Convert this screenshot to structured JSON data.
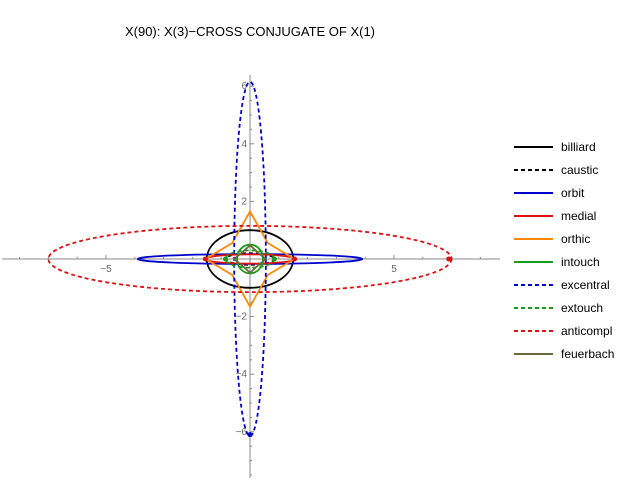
{
  "chart_data": {
    "type": "line",
    "title": "X(90): X(3)−CROSS CONJUGATE OF X(1)",
    "xlabel": "",
    "ylabel": "",
    "xlim": [
      -8.6,
      8.6
    ],
    "ylim": [
      -7.6,
      6.2
    ],
    "x_ticks": [
      -5,
      5
    ],
    "x_tick_labels": [
      "−5",
      "5"
    ],
    "y_ticks": [
      -6,
      -4,
      -2,
      2,
      4,
      6
    ],
    "y_tick_labels": [
      "−6",
      "−4",
      "−2",
      "2",
      "4",
      "6"
    ],
    "grid": false,
    "legend_position": "right",
    "series": [
      {
        "name": "billiard",
        "color": "#000000",
        "dashed": false,
        "kind": "ellipse",
        "cx": 0,
        "cy": 0,
        "rx": 1.5,
        "ry": 1.0
      },
      {
        "name": "caustic",
        "color": "#000000",
        "dashed": true,
        "kind": "ellipse",
        "cx": 0,
        "cy": 0,
        "rx": 0.85,
        "ry": 0.2
      },
      {
        "name": "orbit",
        "color": "#0000cc",
        "dashed": false,
        "kind": "ellipse",
        "cx": 0,
        "cy": 0,
        "rx": 3.9,
        "ry": 0.17
      },
      {
        "name": "medial",
        "color": "#dd1111",
        "dashed": false,
        "kind": "ellipse",
        "cx": 0,
        "cy": 0,
        "rx": 1.55,
        "ry": 0.16
      },
      {
        "name": "orthic",
        "color": "#ff8800",
        "dashed": false,
        "kind": "polygon",
        "points": [
          [
            0.0,
            1.65
          ],
          [
            0.62,
            0.55
          ],
          [
            1.55,
            0.0
          ],
          [
            0.62,
            -0.55
          ],
          [
            0.0,
            -1.65
          ],
          [
            -0.62,
            -0.55
          ],
          [
            -1.55,
            0.0
          ],
          [
            -0.62,
            0.55
          ]
        ]
      },
      {
        "name": "intouch",
        "color": "#1a9a1a",
        "dashed": false,
        "kind": "ellipse",
        "cx": 0,
        "cy": 0,
        "rx": 0.45,
        "ry": 0.5
      },
      {
        "name": "excentral",
        "color": "#0000cc",
        "dashed": true,
        "kind": "ellipse",
        "cx": 0,
        "cy": 0,
        "rx": 0.55,
        "ry": 6.15
      },
      {
        "name": "extouch",
        "color": "#1a9a1a",
        "dashed": true,
        "kind": "ellipse",
        "cx": 0,
        "cy": 0,
        "rx": 0.85,
        "ry": 0.3
      },
      {
        "name": "anticompl",
        "color": "#dd1111",
        "dashed": true,
        "kind": "ellipse",
        "cx": 0,
        "cy": 0,
        "rx": 7.0,
        "ry": 1.15
      },
      {
        "name": "feuerbach",
        "color": "#6b6b3a",
        "dashed": false,
        "kind": "polygon",
        "points": [
          [
            0.0,
            0.48
          ],
          [
            0.25,
            0.25
          ],
          [
            0.55,
            0.0
          ],
          [
            0.25,
            -0.25
          ],
          [
            0.0,
            -0.48
          ],
          [
            -0.25,
            -0.25
          ],
          [
            -0.55,
            0.0
          ],
          [
            -0.25,
            0.25
          ]
        ]
      }
    ],
    "markers": [
      {
        "x": -1.55,
        "y": 0,
        "color": "#dd1111"
      },
      {
        "x": 1.55,
        "y": 0,
        "color": "#dd1111"
      },
      {
        "x": 6.9,
        "y": 0,
        "color": "#dd1111"
      },
      {
        "x": 0,
        "y": -6.1,
        "color": "#0000cc"
      },
      {
        "x": -0.85,
        "y": 0,
        "color": "#1a9a1a"
      },
      {
        "x": 0.85,
        "y": 0,
        "color": "#1a9a1a"
      }
    ]
  }
}
